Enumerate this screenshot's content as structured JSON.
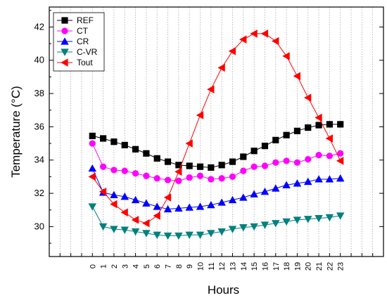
{
  "chart_data": {
    "type": "line",
    "xlabel": "Hours",
    "ylabel": "Temperature (°C)",
    "xlim": [
      -4,
      27
    ],
    "ylim": [
      28.2,
      43.2
    ],
    "x": [
      0,
      1,
      2,
      3,
      4,
      5,
      6,
      7,
      8,
      9,
      10,
      11,
      12,
      13,
      14,
      15,
      16,
      17,
      18,
      19,
      20,
      21,
      22,
      23
    ],
    "x_tick_labels": [
      "0",
      "1",
      "2",
      "3",
      "4",
      "5",
      "6",
      "7",
      "8",
      "9",
      "10",
      "11",
      "12",
      "13",
      "14",
      "15",
      "16",
      "17",
      "18",
      "19",
      "20",
      "21",
      "22",
      "23"
    ],
    "y_ticks": [
      30,
      32,
      34,
      36,
      38,
      40,
      42
    ],
    "y_tick_labels": [
      "30",
      "32",
      "34",
      "36",
      "38",
      "40",
      "42"
    ],
    "grid": "vertical dotted",
    "legend_position": "top-left",
    "series": [
      {
        "name": "REF",
        "color": "#000000",
        "marker": "square",
        "values": [
          35.45,
          35.3,
          35.1,
          34.9,
          34.65,
          34.4,
          34.1,
          33.9,
          33.7,
          33.65,
          33.6,
          33.55,
          33.7,
          33.9,
          34.2,
          34.55,
          34.85,
          35.2,
          35.5,
          35.75,
          35.95,
          36.1,
          36.15,
          36.15
        ]
      },
      {
        "name": "CT",
        "color": "#ff00ff",
        "marker": "circle",
        "values": [
          35.0,
          33.6,
          33.4,
          33.35,
          33.2,
          33.05,
          32.9,
          32.8,
          32.75,
          32.95,
          33.05,
          32.85,
          32.9,
          33.0,
          33.35,
          33.6,
          33.65,
          33.85,
          33.95,
          33.85,
          34.05,
          34.3,
          34.25,
          34.4
        ]
      },
      {
        "name": "CR",
        "color": "#0000ff",
        "marker": "triangle-up",
        "values": [
          33.5,
          32.05,
          31.9,
          31.8,
          31.6,
          31.4,
          31.2,
          31.05,
          31.1,
          31.15,
          31.2,
          31.3,
          31.45,
          31.6,
          31.75,
          31.95,
          32.1,
          32.3,
          32.5,
          32.6,
          32.7,
          32.85,
          32.85,
          32.9
        ]
      },
      {
        "name": "C-VR",
        "color": "#008080",
        "marker": "triangle-down",
        "values": [
          31.2,
          30.0,
          29.85,
          29.8,
          29.7,
          29.6,
          29.5,
          29.45,
          29.45,
          29.5,
          29.5,
          29.6,
          29.7,
          29.85,
          29.95,
          30.0,
          30.1,
          30.2,
          30.3,
          30.4,
          30.45,
          30.5,
          30.55,
          30.65
        ]
      },
      {
        "name": "Tout",
        "color": "#ff0000",
        "marker": "triangle-left",
        "values": [
          33.0,
          32.1,
          31.35,
          30.85,
          30.4,
          30.2,
          30.65,
          31.75,
          33.3,
          35.0,
          36.7,
          38.25,
          39.55,
          40.55,
          41.25,
          41.6,
          41.6,
          41.15,
          40.25,
          39.05,
          37.75,
          36.55,
          35.3,
          33.95
        ]
      }
    ]
  }
}
